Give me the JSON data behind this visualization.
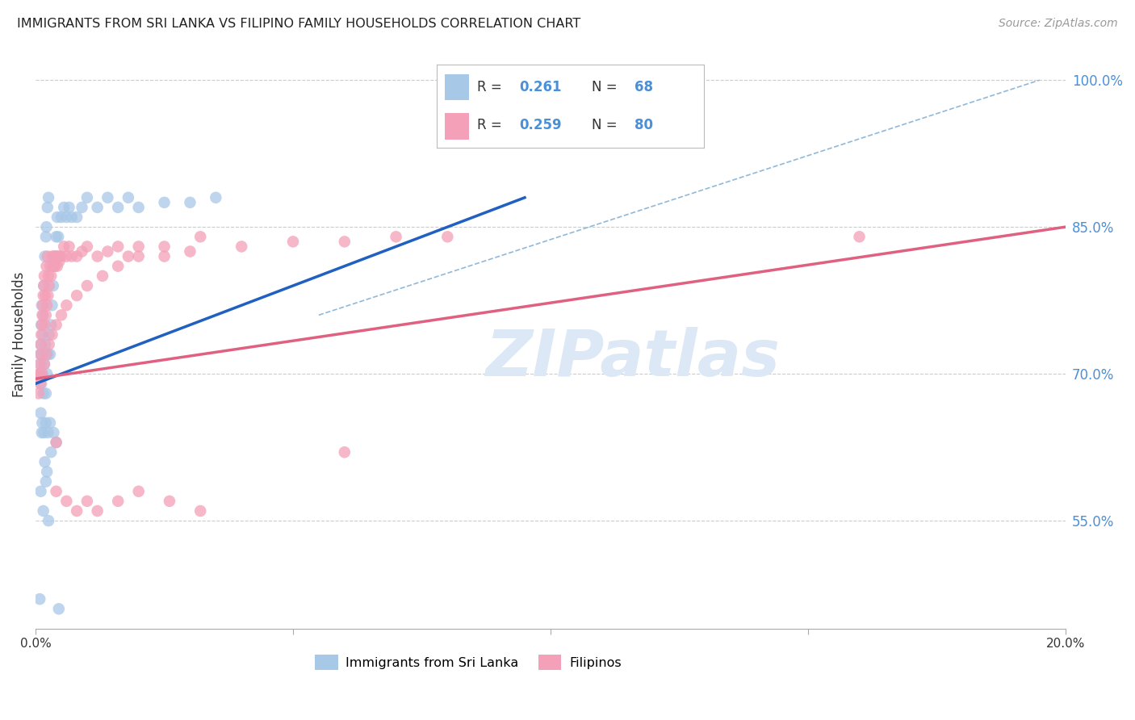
{
  "title": "IMMIGRANTS FROM SRI LANKA VS FILIPINO FAMILY HOUSEHOLDS CORRELATION CHART",
  "source": "Source: ZipAtlas.com",
  "ylabel": "Family Households",
  "ytick_labels": [
    "100.0%",
    "85.0%",
    "70.0%",
    "55.0%"
  ],
  "ytick_values": [
    1.0,
    0.85,
    0.7,
    0.55
  ],
  "xlim": [
    0.0,
    0.2
  ],
  "ylim": [
    0.44,
    1.04
  ],
  "color_sri_lanka": "#a8c8e8",
  "color_filipino": "#f4a0b8",
  "color_sri_lanka_line": "#2060c0",
  "color_filipino_line": "#e06080",
  "color_dashed": "#90b8d8",
  "background_color": "#ffffff",
  "watermark_text": "ZIPatlas",
  "watermark_color": "#dce8f5",
  "legend_box_color": "#cccccc",
  "text_color_blue": "#4a90d9",
  "sri_lanka_scatter_x": [
    0.0008,
    0.0009,
    0.001,
    0.001,
    0.0011,
    0.0011,
    0.0012,
    0.0012,
    0.0013,
    0.0014,
    0.0015,
    0.0015,
    0.0016,
    0.0017,
    0.0018,
    0.0019,
    0.002,
    0.002,
    0.0021,
    0.0022,
    0.0023,
    0.0024,
    0.0025,
    0.0026,
    0.0028,
    0.003,
    0.0032,
    0.0034,
    0.0036,
    0.0038,
    0.004,
    0.0042,
    0.0044,
    0.0046,
    0.005,
    0.0055,
    0.006,
    0.0065,
    0.007,
    0.008,
    0.009,
    0.01,
    0.012,
    0.014,
    0.016,
    0.018,
    0.02,
    0.025,
    0.03,
    0.035,
    0.001,
    0.0015,
    0.002,
    0.0025,
    0.0012,
    0.0018,
    0.0022,
    0.003,
    0.004,
    0.0008,
    0.001,
    0.0013,
    0.0016,
    0.002,
    0.0024,
    0.0028,
    0.0035,
    0.0045
  ],
  "sri_lanka_scatter_y": [
    0.7,
    0.72,
    0.71,
    0.73,
    0.69,
    0.75,
    0.7,
    0.77,
    0.72,
    0.74,
    0.76,
    0.68,
    0.79,
    0.71,
    0.82,
    0.73,
    0.84,
    0.68,
    0.85,
    0.7,
    0.87,
    0.72,
    0.88,
    0.74,
    0.72,
    0.75,
    0.77,
    0.79,
    0.81,
    0.82,
    0.84,
    0.86,
    0.84,
    0.82,
    0.86,
    0.87,
    0.86,
    0.87,
    0.86,
    0.86,
    0.87,
    0.88,
    0.87,
    0.88,
    0.87,
    0.88,
    0.87,
    0.875,
    0.875,
    0.88,
    0.58,
    0.56,
    0.59,
    0.55,
    0.64,
    0.61,
    0.6,
    0.62,
    0.63,
    0.47,
    0.66,
    0.65,
    0.64,
    0.65,
    0.64,
    0.65,
    0.64,
    0.46
  ],
  "filipino_scatter_x": [
    0.0008,
    0.0009,
    0.001,
    0.001,
    0.0011,
    0.0012,
    0.0013,
    0.0014,
    0.0015,
    0.0016,
    0.0017,
    0.0018,
    0.0019,
    0.002,
    0.0021,
    0.0022,
    0.0023,
    0.0024,
    0.0025,
    0.0026,
    0.0028,
    0.003,
    0.0032,
    0.0034,
    0.0036,
    0.0038,
    0.004,
    0.0042,
    0.0044,
    0.0046,
    0.005,
    0.0055,
    0.006,
    0.0065,
    0.007,
    0.008,
    0.009,
    0.01,
    0.012,
    0.014,
    0.016,
    0.018,
    0.02,
    0.025,
    0.03,
    0.04,
    0.05,
    0.06,
    0.07,
    0.08,
    0.0009,
    0.0013,
    0.0017,
    0.0021,
    0.0026,
    0.0032,
    0.004,
    0.005,
    0.006,
    0.008,
    0.01,
    0.013,
    0.016,
    0.02,
    0.025,
    0.032,
    0.004,
    0.0006,
    0.0007,
    0.16,
    0.06,
    0.004,
    0.006,
    0.008,
    0.01,
    0.012,
    0.016,
    0.02,
    0.026,
    0.032
  ],
  "filipino_scatter_y": [
    0.71,
    0.7,
    0.73,
    0.72,
    0.74,
    0.75,
    0.76,
    0.77,
    0.78,
    0.79,
    0.8,
    0.75,
    0.78,
    0.76,
    0.81,
    0.77,
    0.82,
    0.78,
    0.8,
    0.79,
    0.81,
    0.8,
    0.82,
    0.81,
    0.82,
    0.81,
    0.82,
    0.81,
    0.82,
    0.815,
    0.82,
    0.83,
    0.82,
    0.83,
    0.82,
    0.82,
    0.825,
    0.83,
    0.82,
    0.825,
    0.83,
    0.82,
    0.83,
    0.82,
    0.825,
    0.83,
    0.835,
    0.835,
    0.84,
    0.84,
    0.69,
    0.7,
    0.71,
    0.72,
    0.73,
    0.74,
    0.75,
    0.76,
    0.77,
    0.78,
    0.79,
    0.8,
    0.81,
    0.82,
    0.83,
    0.84,
    0.63,
    0.68,
    0.7,
    0.84,
    0.62,
    0.58,
    0.57,
    0.56,
    0.57,
    0.56,
    0.57,
    0.58,
    0.57,
    0.56
  ],
  "sl_line_x": [
    0.0,
    0.095
  ],
  "sl_line_y": [
    0.69,
    0.88
  ],
  "fi_line_x": [
    0.0,
    0.2
  ],
  "fi_line_y": [
    0.695,
    0.85
  ],
  "dash_line_x": [
    0.055,
    0.195
  ],
  "dash_line_y": [
    0.76,
    1.0
  ]
}
